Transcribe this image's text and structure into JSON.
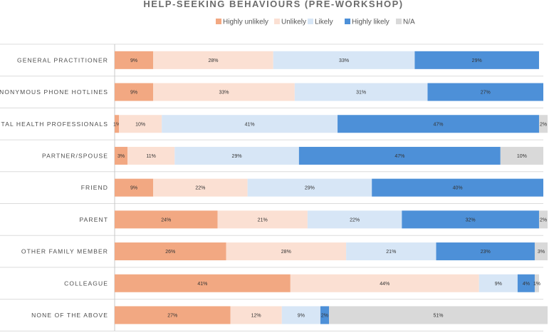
{
  "chart_data": {
    "type": "bar",
    "orientation": "horizontal",
    "stacked": true,
    "normalized": true,
    "title": "HELP-SEEKING BEHAVIOURS (PRE-WORKSHOP)",
    "xlabel": "",
    "ylabel": "",
    "xlim": [
      0,
      100
    ],
    "legend_position": "top",
    "categories": [
      "GENERAL PRACTITIONER",
      "ANONYMOUS PHONE HOTLINES",
      "MENTAL HEALTH PROFESSIONALS",
      "PARTNER/SPOUSE",
      "FRIEND",
      "PARENT",
      "OTHER FAMILY MEMBER",
      "COLLEAGUE",
      "NONE OF THE ABOVE"
    ],
    "series": [
      {
        "name": "Highly unlikely",
        "color": "#f2a882",
        "values": [
          9,
          9,
          1,
          3,
          9,
          24,
          26,
          41,
          27
        ]
      },
      {
        "name": "Unlikely",
        "color": "#fbe0d3",
        "values": [
          28,
          33,
          10,
          11,
          22,
          21,
          28,
          44,
          12
        ]
      },
      {
        "name": "Likely",
        "color": "#d7e6f6",
        "values": [
          33,
          31,
          41,
          29,
          29,
          22,
          21,
          9,
          9
        ]
      },
      {
        "name": "Highly likely",
        "color": "#4d90d8",
        "values": [
          29,
          27,
          47,
          47,
          40,
          32,
          23,
          4,
          2
        ]
      },
      {
        "name": "N/A",
        "color": "#d9d9d9",
        "values": [
          0,
          0,
          2,
          10,
          0,
          2,
          3,
          1,
          51
        ]
      }
    ]
  }
}
